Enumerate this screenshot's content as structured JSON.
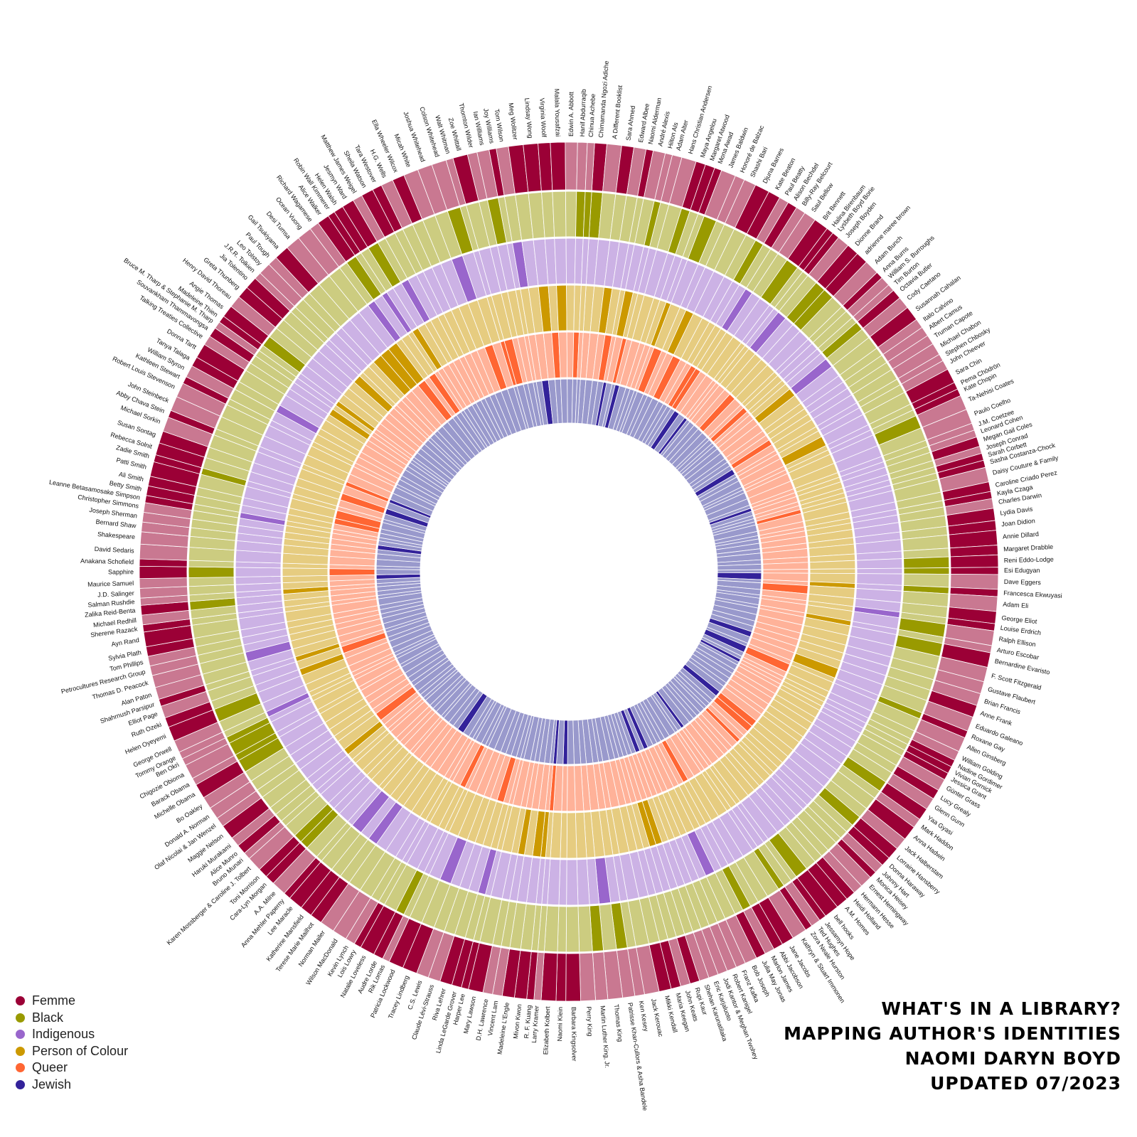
{
  "title_lines": [
    "WHAT'S IN A LIBRARY?",
    "MAPPING AUTHOR'S IDENTITIES",
    "NAOMI DARYN BOYD",
    "UPDATED 07/2023"
  ],
  "legend": [
    {
      "label": "Femme",
      "color": "#9b0036"
    },
    {
      "label": "Black",
      "color": "#999a00"
    },
    {
      "label": "Indigenous",
      "color": "#9966cc"
    },
    {
      "label": "Person of Colour",
      "color": "#cc9900"
    },
    {
      "label": "Queer",
      "color": "#ff6633"
    },
    {
      "label": "Jewish",
      "color": "#33229a"
    }
  ],
  "chart_data": {
    "type": "radial_heatmap",
    "rings": [
      {
        "name": "Femme",
        "on": "#9b0036",
        "off": "#c97891"
      },
      {
        "name": "Black",
        "on": "#999a00",
        "off": "#cccc80"
      },
      {
        "name": "Indigenous",
        "on": "#9966cc",
        "off": "#ccb2e5"
      },
      {
        "name": "Person of Colour",
        "on": "#cc9900",
        "off": "#e6cc80"
      },
      {
        "name": "Queer",
        "on": "#ff6633",
        "off": "#ffb299"
      },
      {
        "name": "Jewish",
        "on": "#33229a",
        "off": "#9999cc"
      }
    ],
    "authors": [
      "Chimamanda Ngozi Adiche",
      "A Different Booklist",
      "Sara Ahmed",
      "Edward Albee",
      "Naomi Alderman",
      "André Alexis",
      "Hilton Als",
      "Adam Alter",
      "Hans Christian Andersen",
      "Maya Angelou",
      "Margaret Atwood",
      "Mona Awad",
      "James Baldwin",
      "Honoré de Balzac",
      "Shashi Bari",
      "Djuna Barnes",
      "Kate Beaton",
      "Paul Beatty",
      "Alison Bechdel",
      "Billy-Ray Belcourt",
      "Saul Bellow",
      "Brit Bennett",
      "Halina Birenbaum",
      "Lysbeth Boyd Borie",
      "Joseph Boyden",
      "Dionne Brand",
      "adrienne maree brown",
      "Adam Bunch",
      "Anna Burns",
      "William S. Burroughs",
      "Tim Burton",
      "Octavia Butler",
      "Cody Caetano",
      "Susannah Cahalan",
      "Italo Calvino",
      "Albert Camus",
      "Truman Capote",
      "Michael Chabon",
      "Stephen Chbosky",
      "John Cheever",
      "Sara Chin",
      "Pema Chödrön",
      "Kate Chopin",
      "Ta-Nehisi Coates",
      "Paulo Coelho",
      "J.M. Coetzee",
      "Leonard Cohen",
      "Megan Gail Coles",
      "Joseph Conrad",
      "Sarah Corbett",
      "Sasha Costanza-Chock",
      "Daisy Couture & Family",
      "Caroline Criado Perez",
      "Kayla Czaga",
      "Charles Darwin",
      "Lydia Davis",
      "Joan Didion",
      "Annie Dillard",
      "Margaret Drabble",
      "Reni Eddo-Lodge",
      "Esi Edugyan",
      "Dave Eggers",
      "Francesca Ekwuyasi",
      "Adam Eli",
      "George Eliot",
      "Louise Erdrich",
      "Ralph Ellison",
      "Arturo Escobar",
      "Bernardine Evaristo",
      "F. Scott Fitzgerald",
      "Gustave Flaubert",
      "Brian Francis",
      "Anne Frank",
      "Eduardo Galeano",
      "Roxane Gay",
      "Allen Ginsberg",
      "William Golding",
      "Nadine Gordimer",
      "Vivian Gornick",
      "Jessica Grant",
      "Günter Grass",
      "Lucy Grealy",
      "Glenn Gunn",
      "Yaa Gyasi",
      "Mark Haddon",
      "Anna Hadwin",
      "Jack Halberstam",
      "Lorraine Hansberry",
      "Donna Haraway",
      "Johnny Hart",
      "Monica Heisey",
      "Ernest Hemingway",
      "Hermann Hesse",
      "Heidi Holland",
      "A.M. Homes",
      "bell hooks",
      "Jessamyn Hope",
      "Ted Hughes",
      "Zora Neale Hurston",
      "Kathryn & Stuart Immonen",
      "Jane Jacobs",
      "Abbi Jacobson",
      "Marlon James",
      "Julia May Jonas",
      "Bob Joseph",
      "Franz Kafka",
      "Robert Kanigel",
      "Jodi Kantor & Meghan Twohey",
      "Eric Karjaluoto",
      "Shehan Karunatilaka",
      "Rupi Kaur",
      "John Keats",
      "Maria Keegan",
      "Mikki Kendall",
      "Jack Kerouac",
      "Ken Kesey",
      "Patrisse Khan-Cullors & Asha Bandele",
      "Thomas King",
      "Martin Luther King, Jr.",
      "Perry King",
      "Barbara Kingsolver",
      "Naomi Klein",
      "Elizabeth Kolbert",
      "Larry Kramer",
      "R. F. Kuang",
      "Mivon Kwon",
      "Madeleine L'Engle",
      "Vincent Lam",
      "D.H. Lawrence",
      "Mary Lawson",
      "Harper Lee",
      "Linda LeGarde Grover",
      "Riva Lehrer",
      "Claude Lévi-Strauss",
      "C.S. Lewis",
      "Tracey Lindberg",
      "Patricia Lockwood",
      "Rik Lomas",
      "Audre Lorde",
      "Natalie Loveless",
      "Lois Lowry",
      "Kevin Lynch",
      "Wilson MacDonald",
      "Norman Mailer",
      "Terese Marie Mailhot",
      "Katherine Mansfield",
      "Lee Maracle",
      "Anna Mehler Paperny",
      "A.A. Milne",
      "Cara-Lyn Morgan",
      "Toni Morrison",
      "Karen Mossberger & Caroline J. Tolbert",
      "Bruno Munari",
      "Alice Munro",
      "Haruki Murakami",
      "Maggie Nelson",
      "Olaf Nicolai & Jan Wenzel",
      "Donald A. Norman",
      "Bo Oakley",
      "Michelle Obama",
      "Barack Obama",
      "Chigozie Obioma",
      "Ben Okri",
      "Tommy Orange",
      "George Orwell",
      "Helen Oyeyemi",
      "Ruth Ozeki",
      "Elliot Page",
      "Shahrnush Parsipur",
      "Alan Paton",
      "Thomas D. Peacock",
      "Petrocultures Research Group",
      "Tom Phillips",
      "Sylvia Plath",
      "Ayn Rand",
      "Sherene Razack",
      "Michael Redhill",
      "Zalika Reid-Benta",
      "Salman Rushdie",
      "J.D. Salinger",
      "Maurice Samuel",
      "Sapphire",
      "Anakana Schofield",
      "David Sedaris",
      "Shakespeare",
      "Bernard Shaw",
      "Joseph Sherman",
      "Christopher Simmons",
      "Leanne Betasamosake Simpson",
      "Betty Smith",
      "Ali Smith",
      "Patti Smith",
      "Zadie Smith",
      "Rebecca Solnit",
      "Susan Sontag",
      "Michael Sorkin",
      "Abby Chava Stein",
      "John Steinbeck",
      "Robert Louis Stevenson",
      "Kathleen Stewart",
      "William Styron",
      "Tanya Talaga",
      "Donna Tartt",
      "Talking Treaties Collective",
      "Souvankham Thammavongsa",
      "Bruce M. Tharp & Stephanie M. Tharp",
      "Madeleine Thien",
      "Angie Thomas",
      "Henry David Thoreau",
      "Greta Thunberg",
      "Jia Tolentino",
      "J.R.R. Tolkien",
      "Leo Tolstoy",
      "Paul Tough",
      "Gail Tsukiyama",
      "Desi Tumsa",
      "Ocean Vuong",
      "Richard Wagamese",
      "Alice Walker",
      "Robin Wall Kimmerer",
      "Helen Walsh",
      "Jesmyn Ward",
      "Matthew James Weigel",
      "Sheila Watson",
      "Tara Westover",
      "H.G. Wells",
      "Ella Wheeler Wilcox",
      "Micah White",
      "Joshua Whitehead",
      "Colson Whitehead",
      "Walt Whitman",
      "Zoe Whittall",
      "Thornton Wilder",
      "Ian Williams",
      "Joy Williams",
      "Tom Wilson",
      "Meg Wolitzer",
      "Lindsay Wong",
      "Virginia Woolf",
      "Malala Yousafzai",
      "Edwin A. Abbott",
      "Hanif Abdurraqib",
      "Chinua Achebe"
    ],
    "sample_flags": {
      "femme": [
        "Chimamanda Ngozi Adiche",
        "Sara Ahmed",
        "Naomi Alderman",
        "Maya Angelou",
        "Margaret Atwood",
        "Mona Awad",
        "Djuna Barnes",
        "Kate Beaton",
        "Alison Bechdel",
        "Brit Bennett",
        "Halina Birenbaum",
        "Lysbeth Boyd Borie",
        "Dionne Brand",
        "adrienne maree brown",
        "Anna Burns",
        "Octavia Butler",
        "Susannah Cahalan",
        "Sara Chin",
        "Pema Chödrön",
        "Kate Chopin",
        "Megan Gail Coles",
        "Sarah Corbett",
        "Sasha Costanza-Chock",
        "Caroline Criado Perez",
        "Kayla Czaga",
        "Lydia Davis",
        "Joan Didion",
        "Annie Dillard",
        "Margaret Drabble",
        "Reni Eddo-Lodge",
        "Esi Edugyan",
        "Francesca Ekwuyasi",
        "George Eliot",
        "Louise Erdrich",
        "Bernardine Evaristo",
        "Anne Frank",
        "Roxane Gay",
        "Nadine Gordimer",
        "Vivian Gornick",
        "Jessica Grant",
        "Lucy Grealy",
        "Yaa Gyasi",
        "Anna Hadwin",
        "Lorraine Hansberry",
        "Donna Haraway",
        "Monica Heisey",
        "Heidi Holland",
        "A.M. Homes",
        "bell hooks",
        "Jessamyn Hope",
        "Zora Neale Hurston",
        "Jane Jacobs",
        "Abbi Jacobson",
        "Julia May Jonas",
        "Rupi Kaur",
        "Maria Keegan",
        "Mikki Kendall",
        "Barbara Kingsolver",
        "Naomi Klein",
        "Elizabeth Kolbert",
        "R. F. Kuang",
        "Mivon Kwon",
        "Madeleine L'Engle",
        "Mary Lawson",
        "Harper Lee",
        "Linda LeGarde Grover",
        "Riva Lehrer",
        "Tracey Lindberg",
        "Patricia Lockwood",
        "Audre Lorde",
        "Natalie Loveless",
        "Lois Lowry",
        "Terese Marie Mailhot",
        "Katherine Mansfield",
        "Lee Maracle",
        "Anna Mehler Paperny",
        "Cara-Lyn Morgan",
        "Toni Morrison",
        "Alice Munro",
        "Maggie Nelson",
        "Michelle Obama",
        "Helen Oyeyemi",
        "Ruth Ozeki",
        "Shahrnush Parsipur",
        "Sylvia Plath",
        "Ayn Rand",
        "Sherene Razack",
        "Zalika Reid-Benta",
        "Sapphire",
        "Anakana Schofield",
        "Leanne Betasamosake Simpson",
        "Betty Smith",
        "Ali Smith",
        "Patti Smith",
        "Zadie Smith",
        "Rebecca Solnit",
        "Susan Sontag",
        "Abby Chava Stein",
        "Kathleen Stewart",
        "Tanya Talaga",
        "Donna Tartt",
        "Souvankham Thammavongsa",
        "Madeleine Thien",
        "Angie Thomas",
        "Greta Thunberg",
        "Jia Tolentino",
        "Gail Tsukiyama",
        "Alice Walker",
        "Robin Wall Kimmerer",
        "Helen Walsh",
        "Jesmyn Ward",
        "Sheila Watson",
        "Tara Westover",
        "Ella Wheeler Wilcox",
        "Zoe Whittall",
        "Joy Williams",
        "Meg Wolitzer",
        "Lindsay Wong",
        "Virginia Woolf",
        "Malala Yousafzai"
      ],
      "black": [
        "Chimamanda Ngozi Adiche",
        "Hilton Als",
        "Maya Angelou",
        "James Baldwin",
        "Paul Beatty",
        "Brit Bennett",
        "Dionne Brand",
        "adrienne maree brown",
        "Octavia Butler",
        "Ta-Nehisi Coates",
        "Esi Edugyan",
        "Reni Eddo-Lodge",
        "Francesca Ekwuyasi",
        "Ralph Ellison",
        "Bernardine Evaristo",
        "Roxane Gay",
        "Yaa Gyasi",
        "Lorraine Hansberry",
        "bell hooks",
        "Zora Neale Hurston",
        "Marlon James",
        "Patrisse Khan-Cullors & Asha Bandele",
        "Martin Luther King, Jr.",
        "Audre Lorde",
        "Toni Morrison",
        "Michelle Obama",
        "Barack Obama",
        "Chigozie Obioma",
        "Ben Okri",
        "Helen Oyeyemi",
        "Zalika Reid-Benta",
        "Sapphire",
        "Zadie Smith",
        "Angie Thomas",
        "Alice Walker",
        "Jesmyn Ward",
        "Colson Whitehead",
        "Ian Williams",
        "Hanif Abdurraqib",
        "Chinua Achebe",
        "Cara-Lyn Morgan"
      ],
      "indigenous": [
        "Billy-Ray Belcourt",
        "Joseph Boyden",
        "Cody Caetano",
        "Louise Erdrich",
        "Thomas King",
        "Linda LeGarde Grover",
        "Tracey Lindberg",
        "Terese Marie Mailhot",
        "Lee Maracle",
        "Tommy Orange",
        "Thomas D. Peacock",
        "Leanne Betasamosake Simpson",
        "Tanya Talaga",
        "Richard Wagamese",
        "Robin Wall Kimmerer",
        "Matthew James Weigel",
        "Joshua Whitehead",
        "Tom Wilson",
        "Bob Joseph"
      ],
      "poc": [
        "Sara Ahmed",
        "André Alexis",
        "Mona Awad",
        "Shashi Bari",
        "Sara Chin",
        "Cody Caetano",
        "Francesca Ekwuyasi",
        "Arturo Escobar",
        "Eduardo Galeano",
        "R. F. Kuang",
        "Mivon Kwon",
        "Vincent Lam",
        "Rupi Kaur",
        "Shehan Karunatilaka",
        "Haruki Murakami",
        "Ruth Ozeki",
        "Shahrnush Parsipur",
        "Salman Rushdie",
        "Souvankham Thammavongsa",
        "Madeleine Thien",
        "Gail Tsukiyama",
        "Ocean Vuong",
        "Lindsay Wong",
        "Malala Yousafzai",
        "Jia Tolentino",
        "Desi Tumsa",
        "Helen Walsh"
      ],
      "queer": [
        "Edward Albee",
        "Hilton Als",
        "James Baldwin",
        "Djuna Barnes",
        "Alison Bechdel",
        "Billy-Ray Belcourt",
        "adrienne maree brown",
        "William S. Burroughs",
        "Truman Capote",
        "Sasha Costanza-Chock",
        "Adam Eli",
        "Allen Ginsberg",
        "Jack Halberstam",
        "Lorraine Hansberry",
        "Monica Heisey",
        "Abbi Jacobson",
        "Larry Kramer",
        "Audre Lorde",
        "Maggie Nelson",
        "Elliot Page",
        "Sapphire",
        "Patti Smith",
        "Susan Sontag",
        "Abby Chava Stein",
        "Ocean Vuong",
        "Alice Walker",
        "Joshua Whitehead",
        "Walt Whitman",
        "Zoe Whittall",
        "Virginia Woolf",
        "Ali Smith",
        "Riva Lehrer",
        "Hanif Abdurraqib"
      ],
      "jewish": [
        "Naomi Alderman",
        "Adam Alter",
        "Saul Bellow",
        "Halina Birenbaum",
        "Leonard Cohen",
        "Michael Chabon",
        "Allen Ginsberg",
        "Vivian Gornick",
        "Anne Frank",
        "Jessamyn Hope",
        "Franz Kafka",
        "Naomi Klein",
        "Larry Kramer",
        "Norman Mailer",
        "Maurice Samuel",
        "Joseph Sherman",
        "Susan Sontag",
        "Abby Chava Stein",
        "Meg Wolitzer",
        "Jodi Kantor & Meghan Twohey",
        "Dave Eggers",
        "Jack Halberstam"
      ]
    }
  }
}
